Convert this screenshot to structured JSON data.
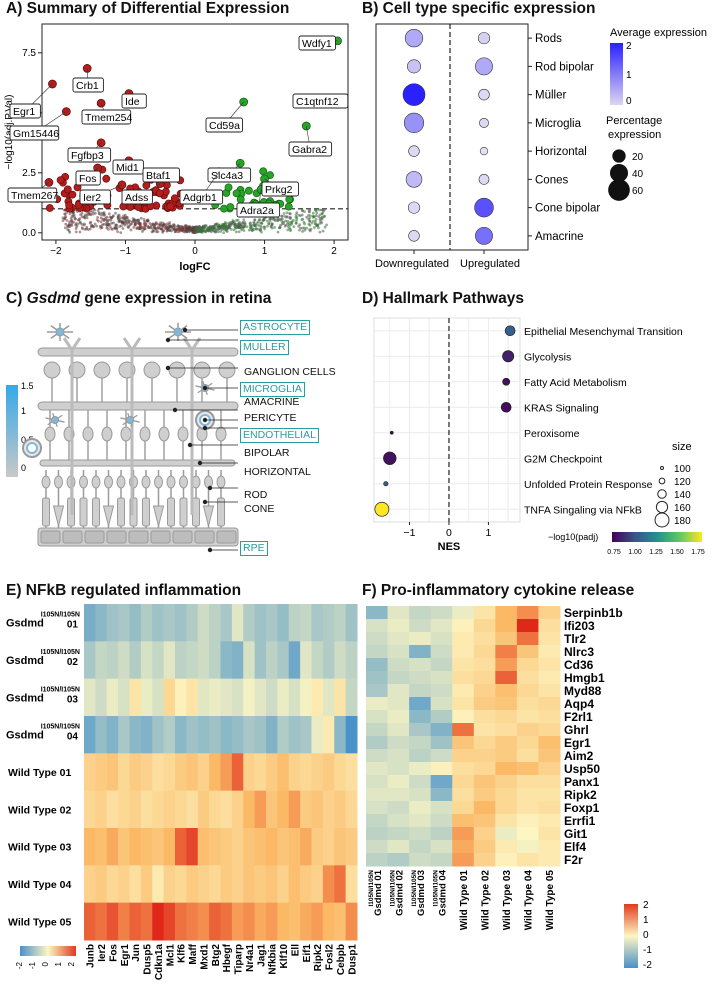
{
  "panels": {
    "a_title": "A) Summary of Differential Expression",
    "b_title": "B) Cell type specific expression",
    "c_title_prefix": "C) ",
    "c_title_gene": "Gsdmd",
    "c_title_suffix": " gene expression in retina",
    "d_title": "D) Hallmark Pathways",
    "e_title": "E) NFkB regulated inflammation",
    "f_title": "F) Pro-inflammatory cytokine release"
  },
  "volcano": {
    "xlabel": "logFC",
    "ylabel": "−log10(adj.P.Val)",
    "xticks": [
      "−2",
      "−1",
      "0",
      "1",
      "2"
    ],
    "yticks": [
      "0.0",
      "2.5",
      "5.0",
      "7.5"
    ],
    "threshold": 1.0,
    "genes_down": [
      {
        "gene": "Egr1",
        "logfc": -2.05,
        "p": 6.2
      },
      {
        "gene": "Crb1",
        "logfc": -1.55,
        "p": 6.85
      },
      {
        "gene": "Ide",
        "logfc": -0.95,
        "p": 5.8
      },
      {
        "gene": "Gm15446",
        "logfc": -1.85,
        "p": 5.05
      },
      {
        "gene": "Tmem254",
        "logfc": -1.35,
        "p": 5.4
      },
      {
        "gene": "Fgfbp3",
        "logfc": -1.35,
        "p": 3.75
      },
      {
        "gene": "Fos",
        "logfc": -1.4,
        "p": 2.7
      },
      {
        "gene": "Mid1",
        "logfc": -0.95,
        "p": 3.0
      },
      {
        "gene": "Tmem267",
        "logfc": -2.1,
        "p": 2.1
      },
      {
        "gene": "Ier2",
        "logfc": -1.05,
        "p": 2.0
      },
      {
        "gene": "Btaf1",
        "logfc": -0.55,
        "p": 2.4
      },
      {
        "gene": "Adss",
        "logfc": -0.5,
        "p": 2.05
      }
    ],
    "genes_up": [
      {
        "gene": "Wdfy1",
        "logfc": 2.05,
        "p": 8.0
      },
      {
        "gene": "C1qtnf12",
        "logfc": 2.05,
        "p": 5.55
      },
      {
        "gene": "Cd59a",
        "logfc": 0.7,
        "p": 5.45
      },
      {
        "gene": "Gabra2",
        "logfc": 1.6,
        "p": 4.45
      },
      {
        "gene": "Slc4a3",
        "logfc": 0.65,
        "p": 2.9
      },
      {
        "gene": "Adgrb1",
        "logfc": 0.35,
        "p": 2.55
      },
      {
        "gene": "Prkg2",
        "logfc": 1.0,
        "p": 2.25
      },
      {
        "gene": "Adra2a",
        "logfc": 0.95,
        "p": 1.8
      }
    ]
  },
  "celltype": {
    "cell_types": [
      "Rods",
      "Rod bipolar",
      "Müller",
      "Microglia",
      "Horizontal",
      "Cones",
      "Cone bipolar",
      "Amacrine"
    ],
    "conditions": [
      "Downregulated",
      "Upregulated"
    ],
    "legend_avg_title": "Average expression",
    "legend_avg_ticks": [
      "2",
      "1",
      "0"
    ],
    "legend_pct_title_1": "Percentage",
    "legend_pct_title_2": "expression",
    "legend_pct_values": [
      "20",
      "40",
      "60"
    ],
    "points": [
      {
        "cell": "Rods",
        "cond": "Downregulated",
        "avg": 0.3,
        "pct": 38
      },
      {
        "cell": "Rods",
        "cond": "Upregulated",
        "avg": -0.2,
        "pct": 14
      },
      {
        "cell": "Rod bipolar",
        "cond": "Downregulated",
        "avg": 0.0,
        "pct": 20
      },
      {
        "cell": "Rod bipolar",
        "cond": "Upregulated",
        "avg": 0.3,
        "pct": 36
      },
      {
        "cell": "Müller",
        "cond": "Downregulated",
        "avg": 2.0,
        "pct": 62
      },
      {
        "cell": "Müller",
        "cond": "Upregulated",
        "avg": -0.3,
        "pct": 12
      },
      {
        "cell": "Microglia",
        "cond": "Downregulated",
        "avg": 0.6,
        "pct": 48
      },
      {
        "cell": "Microglia",
        "cond": "Upregulated",
        "avg": -0.3,
        "pct": 8
      },
      {
        "cell": "Horizontal",
        "cond": "Downregulated",
        "avg": -0.3,
        "pct": 12
      },
      {
        "cell": "Horizontal",
        "cond": "Upregulated",
        "avg": -0.4,
        "pct": 5
      },
      {
        "cell": "Cones",
        "cond": "Downregulated",
        "avg": 0.1,
        "pct": 30
      },
      {
        "cell": "Cones",
        "cond": "Upregulated",
        "avg": -0.3,
        "pct": 10
      },
      {
        "cell": "Cone bipolar",
        "cond": "Downregulated",
        "avg": -0.3,
        "pct": 14
      },
      {
        "cell": "Cone bipolar",
        "cond": "Upregulated",
        "avg": 1.4,
        "pct": 44
      },
      {
        "cell": "Amacrine",
        "cond": "Downregulated",
        "avg": -0.3,
        "pct": 12
      },
      {
        "cell": "Amacrine",
        "cond": "Upregulated",
        "avg": 1.0,
        "pct": 36
      }
    ]
  },
  "retina": {
    "legend_ticks": [
      "1.5",
      "1",
      "0.5",
      "0"
    ],
    "labels": [
      {
        "text": "ASTROCYTE",
        "boxed": true
      },
      {
        "text": "MULLER",
        "boxed": true
      },
      {
        "text": "GANGLION CELLS",
        "boxed": false
      },
      {
        "text": "MICROGLIA",
        "boxed": true
      },
      {
        "text": "AMACRINE",
        "boxed": false
      },
      {
        "text": "PERICYTE",
        "boxed": false
      },
      {
        "text": "ENDOTHELIAL",
        "boxed": true
      },
      {
        "text": "BIPOLAR",
        "boxed": false
      },
      {
        "text": "HORIZONTAL",
        "boxed": false
      },
      {
        "text": "ROD",
        "boxed": false
      },
      {
        "text": "CONE",
        "boxed": false
      },
      {
        "text": "RPE",
        "boxed": true
      }
    ]
  },
  "hallmark": {
    "xlabel": "NES",
    "xticks": [
      "−1",
      "0",
      "1"
    ],
    "size_title": "size",
    "size_values": [
      "100",
      "120",
      "140",
      "160",
      "180"
    ],
    "color_title": "−log10(padj)",
    "color_ticks": [
      "0.75",
      "1.00",
      "1.25",
      "1.50",
      "1.75"
    ],
    "pathways": [
      {
        "name": "Epithelial Mesenchymal Transition",
        "nes": 1.55,
        "size": 150,
        "padj": 1.05
      },
      {
        "name": "Glycolysis",
        "nes": 1.5,
        "size": 160,
        "padj": 0.85
      },
      {
        "name": "Fatty Acid Metabolism",
        "nes": 1.45,
        "size": 130,
        "padj": 0.8
      },
      {
        "name": "KRAS Signaling",
        "nes": 1.45,
        "size": 150,
        "padj": 0.78
      },
      {
        "name": "Peroxisome",
        "nes": -1.45,
        "size": 100,
        "padj": 0.75
      },
      {
        "name": "G2M Checkpoint",
        "nes": -1.5,
        "size": 170,
        "padj": 0.8
      },
      {
        "name": "Unfolded Protein Response",
        "nes": -1.6,
        "size": 110,
        "padj": 1.05
      },
      {
        "name": "TNFA Singaling via NFkB",
        "nes": -1.7,
        "size": 180,
        "padj": 1.75
      }
    ]
  },
  "heatmap_e": {
    "sup": "I105N/I105N",
    "rows": [
      {
        "main": "Gsdmd",
        "num": "01",
        "mutant": true
      },
      {
        "main": "Gsdmd",
        "num": "02",
        "mutant": true
      },
      {
        "main": "Gsdmd",
        "num": "03",
        "mutant": true
      },
      {
        "main": "Gsdmd",
        "num": "04",
        "mutant": true
      },
      {
        "main": "Wild Type 01",
        "num": "",
        "mutant": false
      },
      {
        "main": "Wild Type 02",
        "num": "",
        "mutant": false
      },
      {
        "main": "Wild Type 03",
        "num": "",
        "mutant": false
      },
      {
        "main": "Wild Type 04",
        "num": "",
        "mutant": false
      },
      {
        "main": "Wild Type 05",
        "num": "",
        "mutant": false
      }
    ],
    "genes": [
      "Junb",
      "Ier2",
      "Fos",
      "Egr1",
      "Jun",
      "Dusp5",
      "Cdkn1a",
      "Mcl1",
      "Klf6",
      "Maff",
      "Mxd1",
      "Btg2",
      "Hbegf",
      "Tiparp",
      "Nr4a1",
      "Jag1",
      "Nfkbia",
      "Klf10",
      "Ell",
      "Eif1",
      "Ripk2",
      "Fosl2",
      "Cebpb",
      "Dusp1"
    ],
    "legend_ticks": [
      "-2",
      "-1",
      "0",
      "1",
      "2"
    ],
    "values": [
      [
        -1.4,
        -1.2,
        -1.0,
        -0.9,
        -1.1,
        -0.8,
        -1.0,
        -0.9,
        -1.0,
        -0.8,
        -0.5,
        -0.7,
        -0.9,
        -0.3,
        -0.8,
        -1.0,
        -0.9,
        -1.1,
        -0.7,
        -0.6,
        -0.9,
        -0.8,
        -0.7,
        -1.0
      ],
      [
        -0.9,
        -0.6,
        -0.7,
        -0.5,
        -0.8,
        -0.4,
        -0.6,
        -0.3,
        -0.7,
        -0.6,
        -0.5,
        -0.7,
        -1.2,
        -1.3,
        -0.4,
        -1.0,
        -0.7,
        -0.9,
        -1.5,
        -0.3,
        -0.6,
        -0.8,
        -0.5,
        -0.7
      ],
      [
        -0.3,
        -0.5,
        -0.2,
        -0.4,
        0.3,
        -0.2,
        -0.4,
        0.5,
        0.1,
        0.3,
        -0.3,
        -0.2,
        -0.3,
        -0.4,
        -0.1,
        -0.3,
        -0.5,
        -0.2,
        -0.4,
        -0.1,
        0.2,
        -0.3,
        0.3,
        -0.6
      ],
      [
        -1.5,
        -1.1,
        -1.3,
        -0.9,
        -1.2,
        -1.3,
        -1.0,
        -0.8,
        -1.2,
        -1.0,
        -1.1,
        -1.0,
        -1.2,
        -1.1,
        -0.9,
        -1.0,
        -1.3,
        -0.8,
        -1.0,
        -0.9,
        -0.2,
        0.2,
        -1.2,
        -1.9
      ],
      [
        0.6,
        0.7,
        0.8,
        0.5,
        0.7,
        0.6,
        0.4,
        0.5,
        0.7,
        0.8,
        0.6,
        1.0,
        1.2,
        1.6,
        0.6,
        0.5,
        0.7,
        0.9,
        0.6,
        0.5,
        0.6,
        0.7,
        0.5,
        0.4
      ],
      [
        0.5,
        0.6,
        0.4,
        0.5,
        0.6,
        0.4,
        0.5,
        0.6,
        0.5,
        0.4,
        0.7,
        0.5,
        0.4,
        0.6,
        1.0,
        1.2,
        0.8,
        1.0,
        1.2,
        0.7,
        0.8,
        0.6,
        0.7,
        0.5
      ],
      [
        1.0,
        0.9,
        1.1,
        0.8,
        1.0,
        0.9,
        0.8,
        1.0,
        1.6,
        1.8,
        0.9,
        0.8,
        0.7,
        0.6,
        0.8,
        0.9,
        1.0,
        0.8,
        0.9,
        1.1,
        0.7,
        0.6,
        0.8,
        0.7
      ],
      [
        0.6,
        0.7,
        0.5,
        0.6,
        0.4,
        0.7,
        0.2,
        0.6,
        0.5,
        0.7,
        0.6,
        0.5,
        0.7,
        0.6,
        0.8,
        0.7,
        0.8,
        0.6,
        0.9,
        0.7,
        0.6,
        1.3,
        1.5,
        0.4
      ],
      [
        1.6,
        1.5,
        1.7,
        1.4,
        1.6,
        1.5,
        2.3,
        1.8,
        1.5,
        1.4,
        1.3,
        1.6,
        1.5,
        1.2,
        1.3,
        1.1,
        1.2,
        1.0,
        0.9,
        1.1,
        1.2,
        1.0,
        0.9,
        1.3
      ]
    ]
  },
  "heatmap_f": {
    "sup": "I105N/I105N",
    "genes": [
      "Serpinb1b",
      "Ifi203",
      "Tlr2",
      "Nlrc3",
      "Cd36",
      "Hmgb1",
      "Myd88",
      "Aqp4",
      "F2rl1",
      "Ghrl",
      "Egr1",
      "Aim2",
      "Usp50",
      "Panx1",
      "Ripk2",
      "Foxp1",
      "Errfi1",
      "Git1",
      "Elf4",
      "F2r"
    ],
    "columns": [
      {
        "main": "Gsdmd",
        "num": "01",
        "mutant": true
      },
      {
        "main": "Gsdmd",
        "num": "02",
        "mutant": true
      },
      {
        "main": "Gsdmd",
        "num": "03",
        "mutant": true
      },
      {
        "main": "Gsdmd",
        "num": "04",
        "mutant": true
      },
      {
        "main": "Wild Type 01",
        "num": "",
        "mutant": false
      },
      {
        "main": "Wild Type 02",
        "num": "",
        "mutant": false
      },
      {
        "main": "Wild Type 03",
        "num": "",
        "mutant": false
      },
      {
        "main": "Wild Type 04",
        "num": "",
        "mutant": false
      },
      {
        "main": "Wild Type 05",
        "num": "",
        "mutant": false
      }
    ],
    "legend_ticks": [
      "2",
      "1",
      "0",
      "-1",
      "-2"
    ],
    "values": [
      [
        -1.2,
        -0.3,
        -0.6,
        -0.5,
        -0.2,
        0.3,
        1.0,
        1.3,
        0.6
      ],
      [
        -0.4,
        -0.2,
        -0.5,
        -0.3,
        0.1,
        0.5,
        1.0,
        2.3,
        0.4
      ],
      [
        -0.5,
        -0.3,
        -0.2,
        -0.4,
        0.2,
        0.4,
        0.8,
        1.5,
        0.3
      ],
      [
        -0.6,
        -0.4,
        -1.3,
        -0.5,
        0.2,
        0.5,
        1.4,
        0.8,
        0.2
      ],
      [
        -1.1,
        -0.5,
        -0.4,
        -0.6,
        0.3,
        0.4,
        1.2,
        0.5,
        0.3
      ],
      [
        -1.0,
        -0.6,
        -0.5,
        -0.4,
        0.4,
        0.5,
        1.6,
        0.4,
        0.2
      ],
      [
        -0.9,
        -0.3,
        -0.6,
        -0.5,
        0.2,
        0.6,
        0.9,
        0.5,
        0.3
      ],
      [
        -0.2,
        -0.3,
        -1.5,
        -0.4,
        0.3,
        0.7,
        0.8,
        0.4,
        0.5
      ],
      [
        -0.4,
        -0.2,
        -1.2,
        -0.8,
        0.1,
        0.4,
        0.5,
        0.3,
        0.4
      ],
      [
        -0.6,
        -0.3,
        -0.9,
        -1.3,
        1.5,
        0.3,
        0.4,
        0.6,
        0.5
      ],
      [
        -0.8,
        -0.5,
        -0.6,
        -1.0,
        0.8,
        0.5,
        0.7,
        0.5,
        0.9
      ],
      [
        -0.5,
        -0.4,
        -0.7,
        -0.5,
        0.6,
        0.6,
        0.7,
        0.4,
        0.8
      ],
      [
        -0.3,
        -0.4,
        -0.2,
        0.1,
        0.4,
        0.5,
        1.0,
        0.9,
        0.6
      ],
      [
        -0.4,
        -0.2,
        -0.5,
        -1.5,
        0.5,
        0.8,
        0.6,
        0.4,
        0.4
      ],
      [
        -0.3,
        -0.3,
        -0.4,
        -1.2,
        0.4,
        0.7,
        0.5,
        0.3,
        0.3
      ],
      [
        -0.4,
        -0.5,
        -0.2,
        -0.4,
        0.5,
        1.0,
        0.5,
        0.3,
        0.4
      ],
      [
        -0.6,
        -0.4,
        -0.3,
        -0.5,
        0.9,
        0.8,
        0.3,
        0.1,
        0.2
      ],
      [
        -0.7,
        -0.6,
        -0.5,
        -0.7,
        1.2,
        0.6,
        -0.2,
        0.0,
        0.3
      ],
      [
        -0.5,
        -0.3,
        -0.6,
        -0.4,
        1.1,
        0.7,
        0.2,
        -0.1,
        0.2
      ],
      [
        -0.7,
        -0.8,
        -0.5,
        -0.6,
        1.2,
        0.6,
        0.1,
        0.3,
        0.2
      ]
    ]
  },
  "chart_data": [
    {
      "type": "scatter",
      "title": "Summary of Differential Expression",
      "xlabel": "logFC",
      "ylabel": "-log10(adj.P.Val)",
      "xlim": [
        -2.2,
        2.2
      ],
      "ylim": [
        -0.3,
        8.7
      ]
    },
    {
      "type": "scatter",
      "title": "Cell type specific expression",
      "xlabel": "",
      "ylabel": ""
    },
    {
      "type": "scatter",
      "title": "Hallmark Pathways",
      "xlabel": "NES",
      "ylabel": "",
      "xlim": [
        -1.9,
        1.8
      ]
    },
    {
      "type": "heatmap",
      "title": "NFkB regulated inflammation"
    },
    {
      "type": "heatmap",
      "title": "Pro-inflammatory cytokine release"
    }
  ]
}
